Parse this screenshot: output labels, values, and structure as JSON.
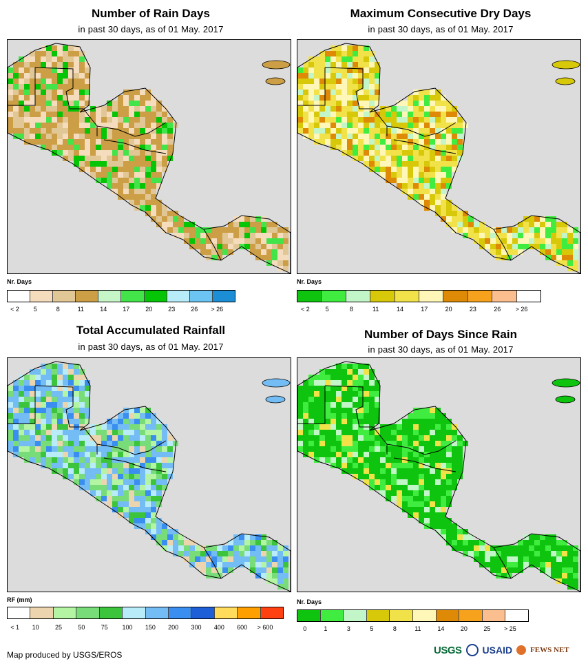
{
  "panels": [
    {
      "title": "Number of Rain Days",
      "subtitle": "in past 30 days, as of 01 May. 2017",
      "legend_title": "Nr. Days",
      "legend_colors": [
        "#ffffff",
        "#f5dcbc",
        "#e2c796",
        "#cc9e45",
        "#c6f5c8",
        "#42e44a",
        "#06c406",
        "#b8ecf8",
        "#6cc4f2",
        "#1c8ed6"
      ],
      "legend_ticks": [
        "< 2",
        "5",
        "8",
        "11",
        "14",
        "17",
        "20",
        "23",
        "26",
        "> 26"
      ],
      "land_palette": [
        "#cc9e45",
        "#e2c796",
        "#cc9e45",
        "#f5dcbc",
        "#cc9e45",
        "#e2c796",
        "#cc9e45",
        "#42e44a",
        "#f5dcbc",
        "#06c406"
      ]
    },
    {
      "title": "Maximum Consecutive Dry Days",
      "subtitle": "in past 30 days, as of 01 May. 2017",
      "legend_title": "Nr. Days",
      "legend_colors": [
        "#0ec40e",
        "#40ec40",
        "#c2f5c8",
        "#d8c80a",
        "#f2e24a",
        "#fff7b8",
        "#de8a06",
        "#f7a21c",
        "#fbbe8e",
        "#ffffff"
      ],
      "legend_ticks": [
        "< 2",
        "5",
        "8",
        "11",
        "14",
        "17",
        "20",
        "23",
        "26",
        "> 26"
      ],
      "land_palette": [
        "#d8c80a",
        "#f2e24a",
        "#fff7b8",
        "#c2f5c8",
        "#f2e24a",
        "#d8c80a",
        "#40ec40",
        "#fff7b8",
        "#de8a06",
        "#f2e24a"
      ]
    },
    {
      "title": "Total Accumulated Rainfall",
      "subtitle": "in past 30 days, as of 01 May. 2017",
      "legend_title": "RF (mm)",
      "legend_colors": [
        "#ffffff",
        "#ecd5ae",
        "#b4f5a4",
        "#78dc78",
        "#3cc43c",
        "#b8ecf8",
        "#74bcf4",
        "#3a8ef0",
        "#1e5ed6",
        "#ffdc5c",
        "#ffa000",
        "#ff4010"
      ],
      "legend_ticks": [
        "< 1",
        "10",
        "25",
        "50",
        "75",
        "100",
        "150",
        "200",
        "300",
        "400",
        "600",
        "> 600"
      ],
      "land_palette": [
        "#74bcf4",
        "#b8ecf8",
        "#78dc78",
        "#74bcf4",
        "#3cc43c",
        "#b4f5a4",
        "#3a8ef0",
        "#74bcf4",
        "#ecd5ae",
        "#78dc78"
      ]
    },
    {
      "title": "Number of Days Since Rain",
      "subtitle": "in past 30 days, as of 01 May. 2017",
      "legend_title": "Nr. Days",
      "legend_colors": [
        "#0ec40e",
        "#40ec40",
        "#c2f5c8",
        "#d8c80a",
        "#f2e24a",
        "#fff7b8",
        "#de8a06",
        "#f7a21c",
        "#fbbe8e",
        "#ffffff"
      ],
      "legend_ticks": [
        "0",
        "1",
        "3",
        "5",
        "8",
        "11",
        "14",
        "20",
        "25",
        "> 25"
      ],
      "land_palette": [
        "#0ec40e",
        "#0ec40e",
        "#0ec40e",
        "#40ec40",
        "#0ec40e",
        "#c2f5c8",
        "#0ec40e",
        "#40ec40",
        "#0ec40e",
        "#f2e24a"
      ]
    }
  ],
  "credit": "Map produced by USGS/EROS",
  "logos": [
    "USGS",
    "USAID",
    "FEWS NET"
  ],
  "colors": {
    "ocean": "#dcdcdc",
    "border": "#000000"
  }
}
